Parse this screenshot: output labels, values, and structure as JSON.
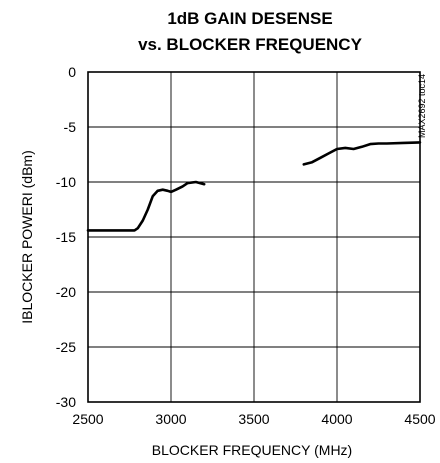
{
  "chart_data": {
    "type": "line",
    "title": "1dB GAIN DESENSE",
    "subtitle": "vs. BLOCKER FREQUENCY",
    "xlabel": "BLOCKER FREQUENCY (MHz)",
    "ylabel": "IBLOCKER POWERI (dBm)",
    "side_label": "MAX2692 toc14",
    "xlim": [
      2500,
      4500
    ],
    "ylim": [
      -30,
      0
    ],
    "x_ticks": [
      2500,
      3000,
      3500,
      4000,
      4500
    ],
    "y_ticks": [
      0,
      -5,
      -10,
      -15,
      -20,
      -25,
      -30
    ],
    "grid": true,
    "series": [
      {
        "segments": [
          [
            [
              2500,
              -14.4
            ],
            [
              2600,
              -14.4
            ],
            [
              2700,
              -14.4
            ],
            [
              2780,
              -14.4
            ],
            [
              2800,
              -14.2
            ],
            [
              2830,
              -13.5
            ],
            [
              2860,
              -12.5
            ],
            [
              2890,
              -11.3
            ],
            [
              2920,
              -10.8
            ],
            [
              2950,
              -10.7
            ],
            [
              2980,
              -10.8
            ],
            [
              3000,
              -10.9
            ],
            [
              3030,
              -10.7
            ],
            [
              3070,
              -10.4
            ],
            [
              3100,
              -10.1
            ],
            [
              3150,
              -10.0
            ],
            [
              3200,
              -10.2
            ]
          ],
          [
            [
              3800,
              -8.4
            ],
            [
              3850,
              -8.2
            ],
            [
              3900,
              -7.8
            ],
            [
              3950,
              -7.4
            ],
            [
              4000,
              -7.0
            ],
            [
              4050,
              -6.9
            ],
            [
              4100,
              -7.0
            ],
            [
              4150,
              -6.8
            ],
            [
              4200,
              -6.55
            ],
            [
              4250,
              -6.5
            ],
            [
              4300,
              -6.5
            ],
            [
              4400,
              -6.45
            ],
            [
              4500,
              -6.4
            ]
          ]
        ]
      }
    ]
  }
}
